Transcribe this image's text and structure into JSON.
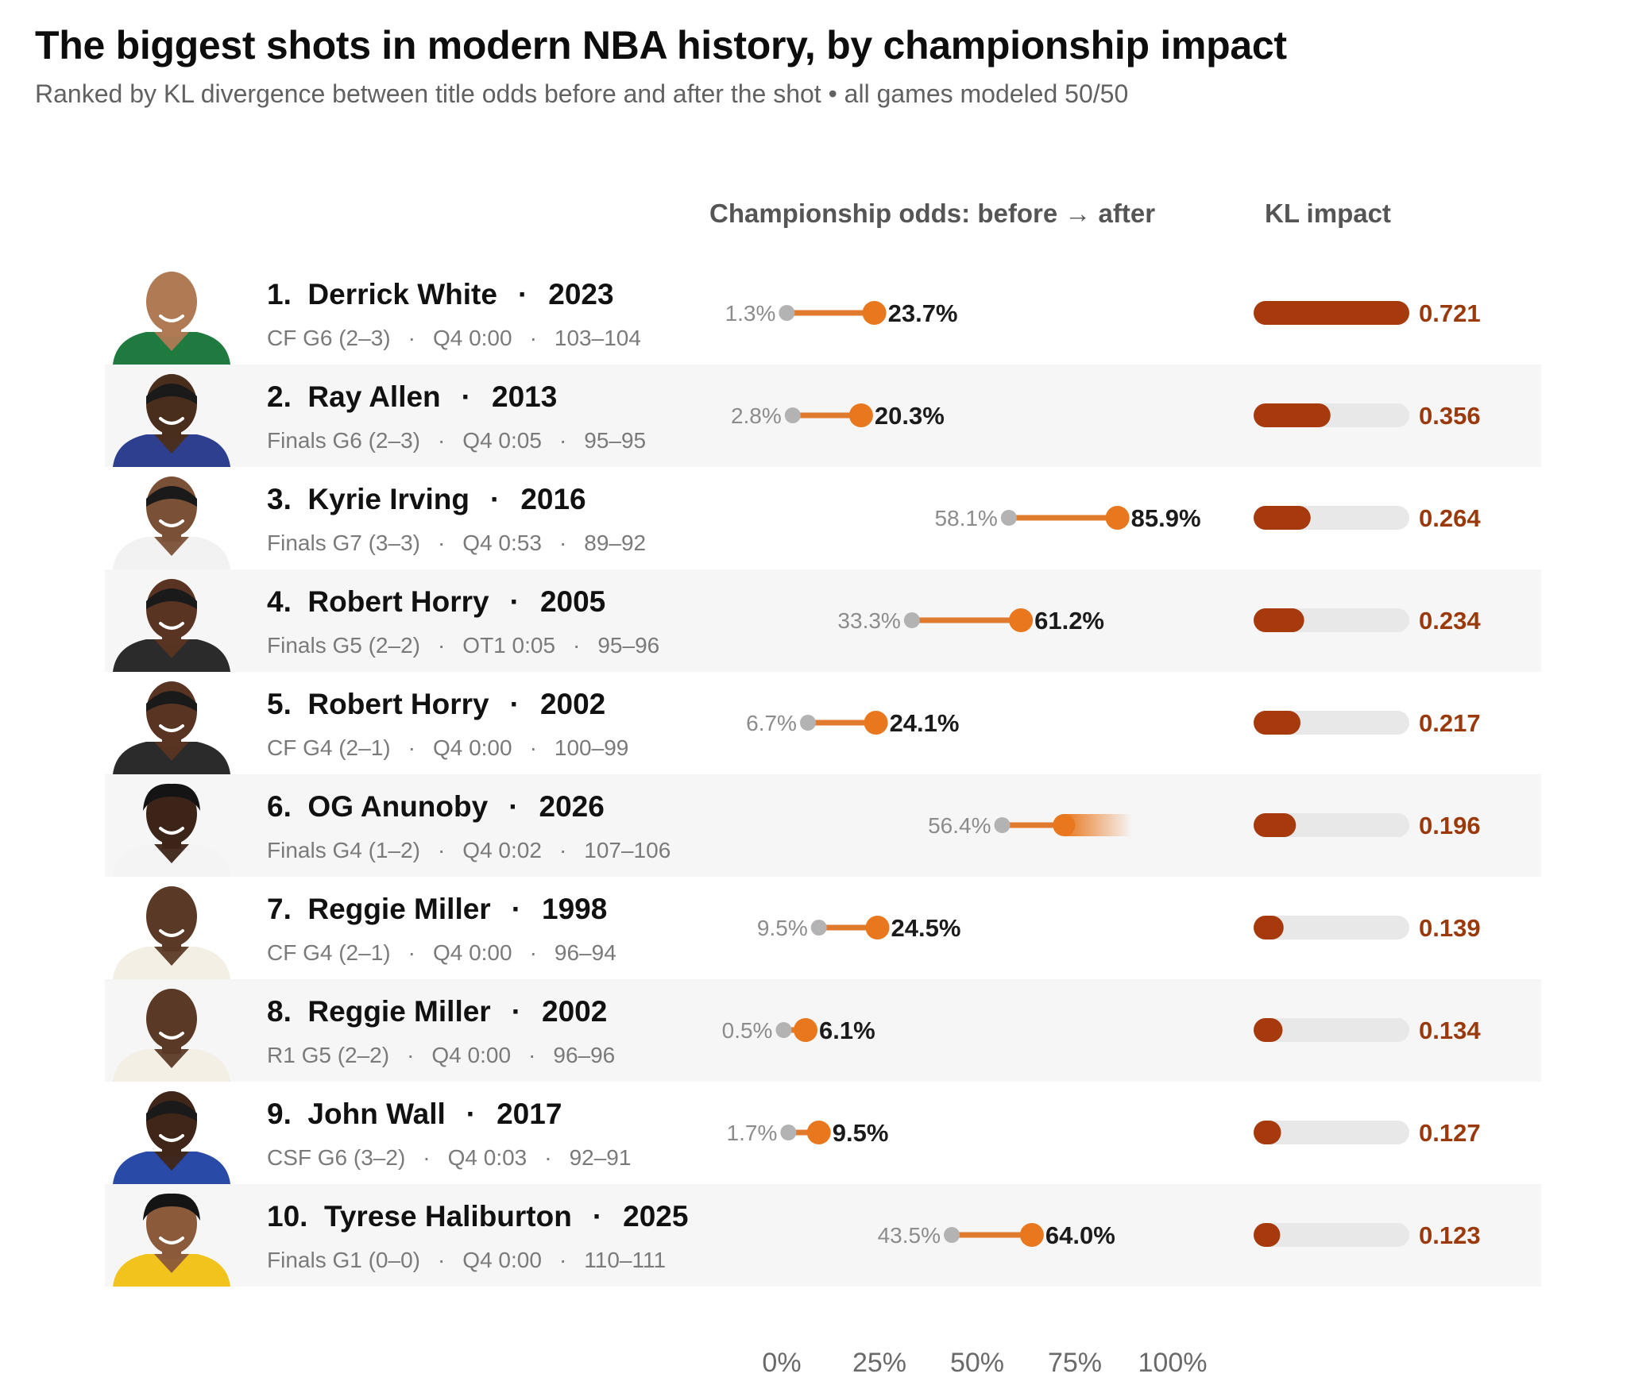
{
  "header": {
    "title": "The biggest shots in modern NBA history, by championship impact",
    "subtitle": "Ranked by KL divergence between title odds before and after the shot • all games modeled 50/50"
  },
  "columns": {
    "odds": "Championship odds:  before → after",
    "kl": "KL impact"
  },
  "colors": {
    "before_dot": "#b3b3b3",
    "odds_line": "#e07a2c",
    "after_dot": "#e8771e",
    "kl_bar": "#a63a0c",
    "kl_track": "#e8e8e8",
    "kl_text": "#9a3a0c"
  },
  "chart_data": {
    "type": "table",
    "title": "The biggest shots in modern NBA history, by championship impact",
    "subtitle": "Ranked by KL divergence between title odds before and after the shot • all games modeled 50/50",
    "odds_axis": {
      "ticks": [
        "0%",
        "25%",
        "50%",
        "75%",
        "100%"
      ],
      "range": [
        0,
        100
      ]
    },
    "kl_axis": {
      "range": [
        0,
        0.721
      ]
    },
    "rows": [
      {
        "rank": "1.",
        "player": "Derrick White",
        "year": "2023",
        "series": "CF G6 (2–3)",
        "clock": "Q4 0:00",
        "score": "103–104",
        "before": 1.3,
        "after": 23.7,
        "before_label": "1.3%",
        "after_label": "23.7%",
        "kl": 0.721,
        "kl_label": "0.721",
        "jersey": "#1f7a3f",
        "skin": "#b07a55",
        "hair": "none"
      },
      {
        "rank": "2.",
        "player": "Ray Allen",
        "year": "2013",
        "series": "Finals G6 (2–3)",
        "clock": "Q4 0:05",
        "score": "95–95",
        "before": 2.8,
        "after": 20.3,
        "before_label": "2.8%",
        "after_label": "20.3%",
        "kl": 0.356,
        "kl_label": "0.356",
        "jersey": "#2f3f8f",
        "skin": "#4a2e1c",
        "hair": "short"
      },
      {
        "rank": "3.",
        "player": "Kyrie Irving",
        "year": "2016",
        "series": "Finals G7 (3–3)",
        "clock": "Q4 0:53",
        "score": "89–92",
        "before": 58.1,
        "after": 85.9,
        "before_label": "58.1%",
        "after_label": "85.9%",
        "kl": 0.264,
        "kl_label": "0.264",
        "jersey": "#f2f2f2",
        "skin": "#7a5036",
        "hair": "short"
      },
      {
        "rank": "4.",
        "player": "Robert Horry",
        "year": "2005",
        "series": "Finals G5 (2–2)",
        "clock": "OT1 0:05",
        "score": "95–96",
        "before": 33.3,
        "after": 61.2,
        "before_label": "33.3%",
        "after_label": "61.2%",
        "kl": 0.234,
        "kl_label": "0.234",
        "jersey": "#2b2b2b",
        "skin": "#5a3422",
        "hair": "short"
      },
      {
        "rank": "5.",
        "player": "Robert Horry",
        "year": "2002",
        "series": "CF G4 (2–1)",
        "clock": "Q4 0:00",
        "score": "100–99",
        "before": 6.7,
        "after": 24.1,
        "before_label": "6.7%",
        "after_label": "24.1%",
        "kl": 0.217,
        "kl_label": "0.217",
        "jersey": "#2b2b2b",
        "skin": "#5a3422",
        "hair": "short"
      },
      {
        "rank": "6.",
        "player": "OG Anunoby",
        "year": "2026",
        "series": "Finals G4 (1–2)",
        "clock": "Q4 0:02",
        "score": "107–106",
        "before": 56.4,
        "after": 81.5,
        "before_label": "56.4%",
        "after_label": "",
        "kl": 0.196,
        "kl_label": "0.196",
        "faded": true,
        "jersey": "#f4f4f4",
        "skin": "#3d2418",
        "hair": "curly"
      },
      {
        "rank": "7.",
        "player": "Reggie Miller",
        "year": "1998",
        "series": "CF G4 (2–1)",
        "clock": "Q4 0:00",
        "score": "96–94",
        "before": 9.5,
        "after": 24.5,
        "before_label": "9.5%",
        "after_label": "24.5%",
        "kl": 0.139,
        "kl_label": "0.139",
        "jersey": "#f3efe4",
        "skin": "#5a3a26",
        "hair": "none"
      },
      {
        "rank": "8.",
        "player": "Reggie Miller",
        "year": "2002",
        "series": "R1 G5 (2–2)",
        "clock": "Q4 0:00",
        "score": "96–96",
        "before": 0.5,
        "after": 6.1,
        "before_label": "0.5%",
        "after_label": "6.1%",
        "kl": 0.134,
        "kl_label": "0.134",
        "jersey": "#f3efe4",
        "skin": "#5a3a26",
        "hair": "none"
      },
      {
        "rank": "9.",
        "player": "John Wall",
        "year": "2017",
        "series": "CSF G6 (3–2)",
        "clock": "Q4 0:03",
        "score": "92–91",
        "before": 1.7,
        "after": 9.5,
        "before_label": "1.7%",
        "after_label": "9.5%",
        "kl": 0.127,
        "kl_label": "0.127",
        "jersey": "#2a4aa8",
        "skin": "#3f2618",
        "hair": "short"
      },
      {
        "rank": "10.",
        "player": "Tyrese Haliburton",
        "year": "2025",
        "series": "Finals G1 (0–0)",
        "clock": "Q4 0:00",
        "score": "110–111",
        "before": 43.5,
        "after": 64.0,
        "before_label": "43.5%",
        "after_label": "64.0%",
        "kl": 0.123,
        "kl_label": "0.123",
        "jersey": "#f2c31c",
        "skin": "#8a5a3a",
        "hair": "curly"
      }
    ]
  }
}
